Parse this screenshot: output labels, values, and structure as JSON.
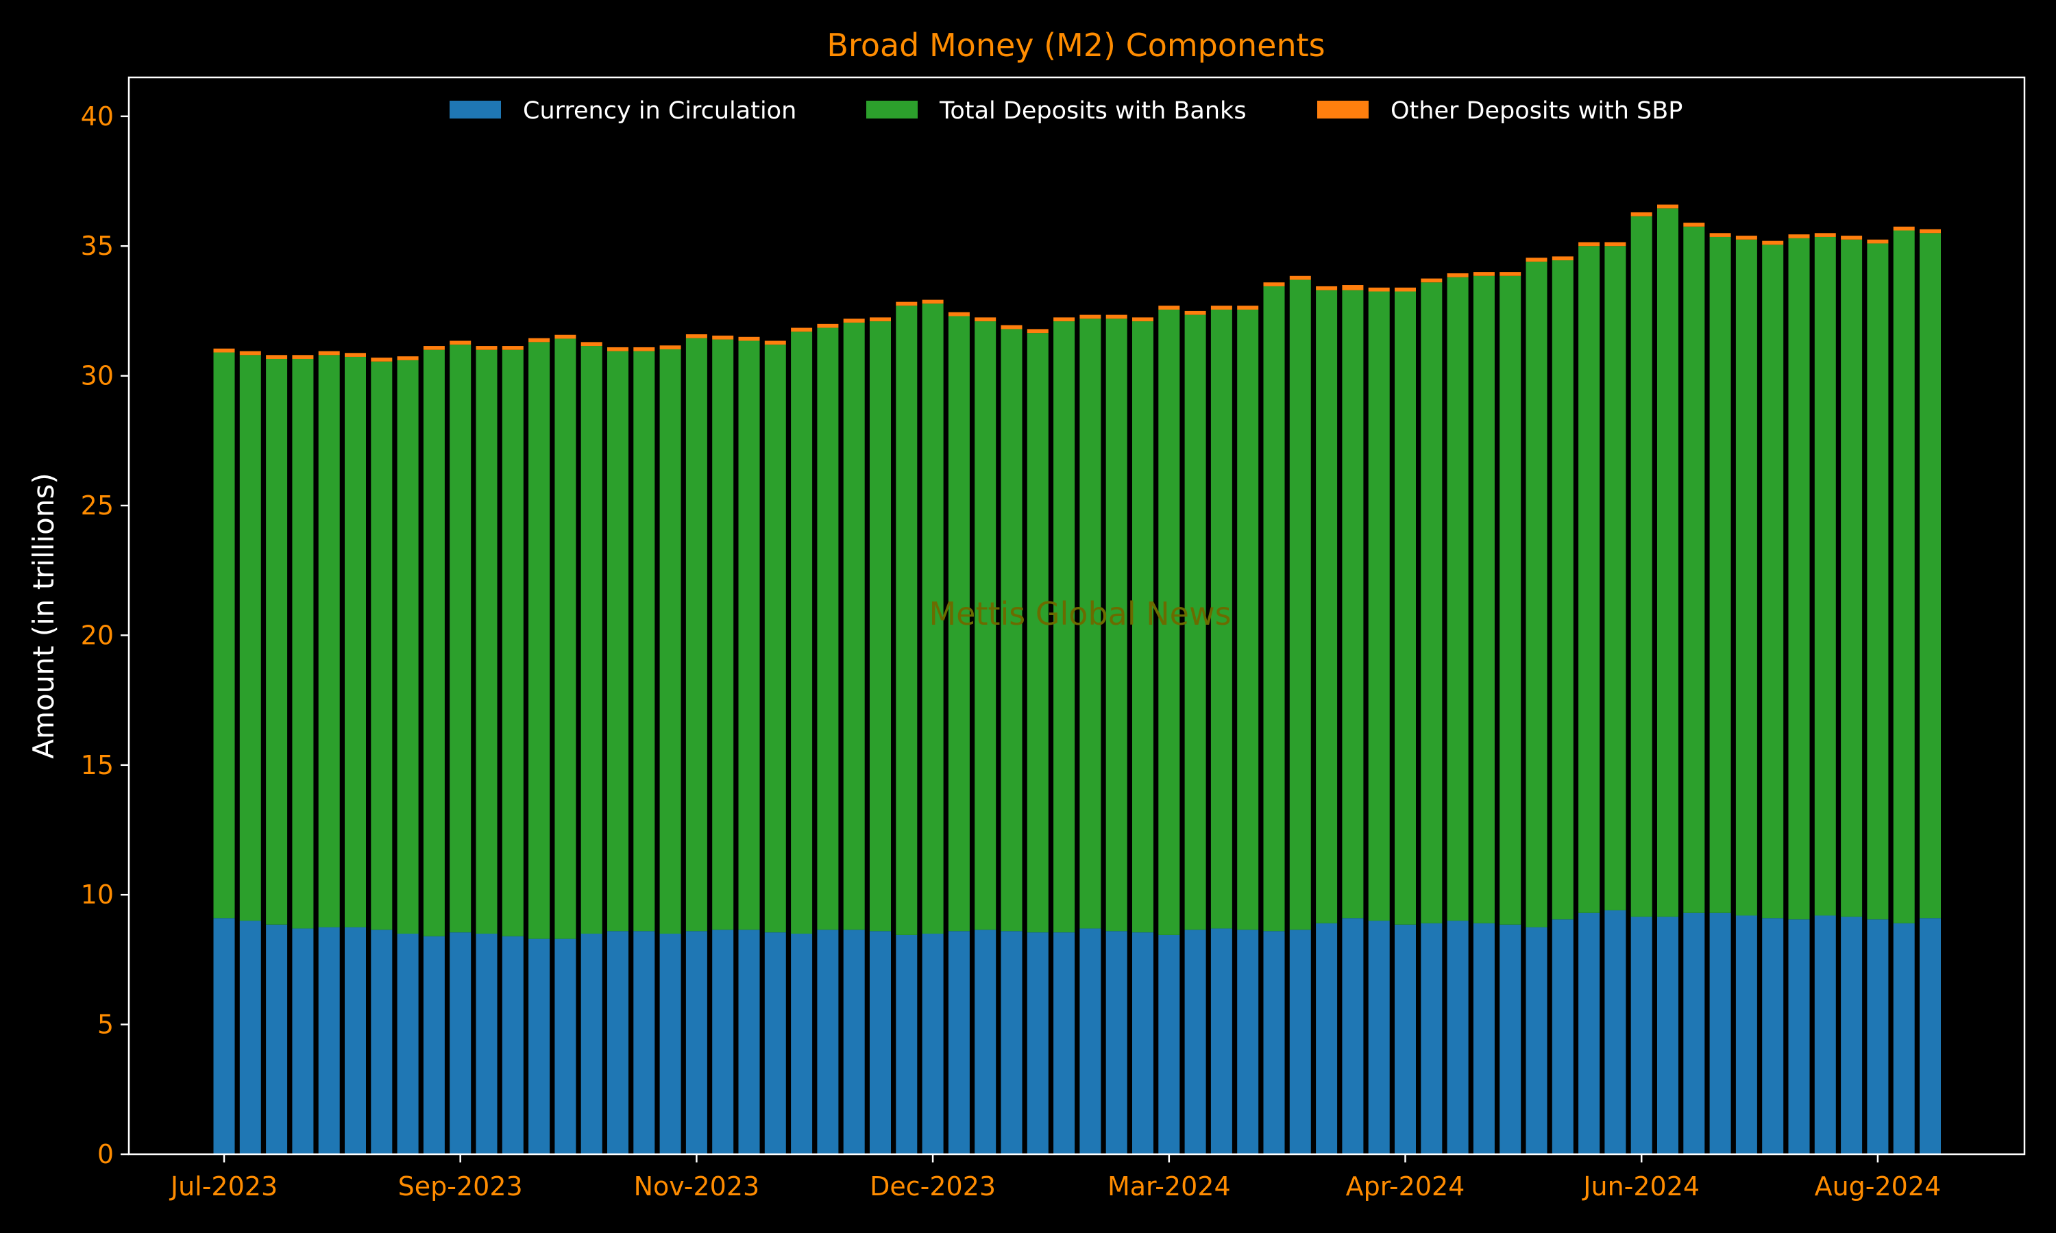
{
  "chart_data": {
    "type": "bar",
    "stacked": true,
    "title": "Broad Money (M2) Components",
    "ylabel": "Amount (in trillions)",
    "xlabel": "",
    "ylim": [
      0,
      41.5
    ],
    "yticks": [
      0,
      5,
      10,
      15,
      20,
      25,
      30,
      35,
      40
    ],
    "xticks": [
      {
        "index": 0,
        "label": "Jul-2023"
      },
      {
        "index": 9,
        "label": "Sep-2023"
      },
      {
        "index": 18,
        "label": "Nov-2023"
      },
      {
        "index": 27,
        "label": "Dec-2023"
      },
      {
        "index": 36,
        "label": "Mar-2024"
      },
      {
        "index": 45,
        "label": "Apr-2024"
      },
      {
        "index": 54,
        "label": "Jun-2024"
      },
      {
        "index": 63,
        "label": "Aug-2024"
      }
    ],
    "legend_position": "top-center",
    "watermark": "Mettis Global News",
    "colors": {
      "background": "#000000",
      "axes": "#ffffff",
      "title": "#ff8c00",
      "ticks": "#ff8c00",
      "ylabel": "#ffffff",
      "legend_text": "#ffffff",
      "watermark": "#6b6b00"
    },
    "series": [
      {
        "name": "Currency in Circulation",
        "color": "#1f77b4",
        "values": [
          9.1,
          9.0,
          8.85,
          8.7,
          8.75,
          8.75,
          8.65,
          8.5,
          8.4,
          8.55,
          8.5,
          8.4,
          8.3,
          8.3,
          8.5,
          8.6,
          8.6,
          8.5,
          8.6,
          8.65,
          8.65,
          8.55,
          8.5,
          8.65,
          8.65,
          8.6,
          8.45,
          8.5,
          8.6,
          8.65,
          8.6,
          8.55,
          8.55,
          8.7,
          8.6,
          8.55,
          8.45,
          8.65,
          8.7,
          8.65,
          8.6,
          8.65,
          8.9,
          9.1,
          9.0,
          8.85,
          8.9,
          9.0,
          8.9,
          8.85,
          8.75,
          9.05,
          9.3,
          9.4,
          9.15,
          9.15,
          9.3,
          9.3,
          9.2,
          9.1,
          9.05,
          9.2,
          9.15,
          9.05,
          8.9,
          9.1
        ]
      },
      {
        "name": "Total Deposits with Banks",
        "color": "#2ca02c",
        "values": [
          21.8,
          21.8,
          21.8,
          21.95,
          22.05,
          21.98,
          21.9,
          22.1,
          22.6,
          22.65,
          22.5,
          22.6,
          23.0,
          23.13,
          22.65,
          22.35,
          22.35,
          22.52,
          22.85,
          22.75,
          22.7,
          22.65,
          23.2,
          23.2,
          23.4,
          23.5,
          24.25,
          24.28,
          23.7,
          23.45,
          23.2,
          23.1,
          23.55,
          23.5,
          23.6,
          23.55,
          24.1,
          23.7,
          23.85,
          23.9,
          24.85,
          25.05,
          24.4,
          24.2,
          24.25,
          24.4,
          24.7,
          24.8,
          24.95,
          25.0,
          25.65,
          25.4,
          25.7,
          25.6,
          27.0,
          27.3,
          26.45,
          26.05,
          26.05,
          25.95,
          26.25,
          26.15,
          26.1,
          26.05,
          26.7,
          26.4
        ]
      },
      {
        "name": "Other Deposits with SBP",
        "color": "#ff7f0e",
        "values": [
          0.15,
          0.15,
          0.15,
          0.15,
          0.15,
          0.15,
          0.15,
          0.15,
          0.15,
          0.15,
          0.15,
          0.15,
          0.15,
          0.15,
          0.15,
          0.15,
          0.15,
          0.15,
          0.15,
          0.15,
          0.15,
          0.15,
          0.15,
          0.15,
          0.15,
          0.15,
          0.15,
          0.15,
          0.15,
          0.15,
          0.15,
          0.15,
          0.15,
          0.15,
          0.15,
          0.15,
          0.15,
          0.15,
          0.15,
          0.15,
          0.15,
          0.15,
          0.15,
          0.2,
          0.15,
          0.15,
          0.15,
          0.15,
          0.15,
          0.15,
          0.15,
          0.15,
          0.15,
          0.15,
          0.15,
          0.15,
          0.15,
          0.15,
          0.15,
          0.15,
          0.15,
          0.15,
          0.15,
          0.15,
          0.15,
          0.15
        ]
      }
    ]
  }
}
